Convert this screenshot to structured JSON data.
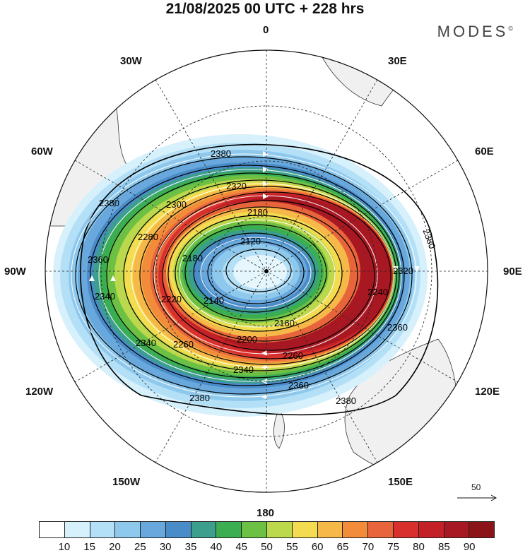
{
  "header": {
    "title": "21/08/2025  00 UTC  + 228 hrs",
    "brand": "MODES",
    "brand_mark": "©"
  },
  "longitude_labels": {
    "n0": "0",
    "e30": "30E",
    "e60": "60E",
    "e90": "90E",
    "e120": "120E",
    "e150": "150E",
    "s180": "180",
    "w150": "150W",
    "w120": "120W",
    "w90": "90W",
    "w60": "60W",
    "w30": "30W"
  },
  "contour_labels": [
    "2380",
    "2380",
    "2380",
    "2380",
    "2380",
    "2360",
    "2360",
    "2360",
    "2340",
    "2340",
    "2340",
    "2320",
    "2320",
    "2300",
    "2280",
    "2260",
    "2260",
    "2240",
    "2220",
    "2200",
    "2180",
    "2180",
    "2160",
    "2140",
    "2120"
  ],
  "reference_vector": {
    "value": "50",
    "icon": "arrow-right-icon"
  },
  "colorbar": {
    "colors": [
      "#ffffff",
      "#d6f0fc",
      "#b4e0f7",
      "#8ec8ec",
      "#68a8dc",
      "#4a8cc8",
      "#3c9e8c",
      "#3cae52",
      "#6cc044",
      "#bcd84c",
      "#f4dc50",
      "#f6b848",
      "#f28c3a",
      "#e8643a",
      "#d8302c",
      "#c42028",
      "#a81822",
      "#8a1418"
    ],
    "labels": [
      "10",
      "15",
      "20",
      "25",
      "30",
      "35",
      "40",
      "45",
      "50",
      "55",
      "60",
      "65",
      "70",
      "75",
      "80",
      "85",
      "90"
    ]
  }
}
